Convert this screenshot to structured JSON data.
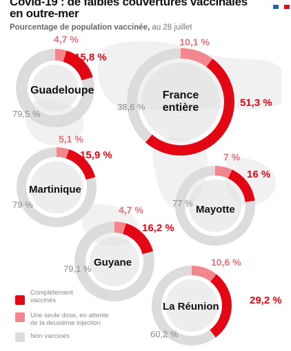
{
  "header": {
    "title_line1": "Covid-19 : de faibles couvertures vaccinales",
    "title_line2": "en outre-mer",
    "subtitle_main": "Pourcentage de population vaccinée,",
    "subtitle_date": "au 28 juillet"
  },
  "colors": {
    "complete": "#e30613",
    "partial": "#f2868f",
    "none": "#dcdcdc",
    "map": "#dedede",
    "text_red": "#e30613",
    "text_pink": "#ec6f7c",
    "text_grey": "#8a8a8a"
  },
  "legend": [
    {
      "key": "complete",
      "label_line1": "Complètement",
      "label_line2": "vaccinés"
    },
    {
      "key": "partial",
      "label_line1": "Une seule dose, en attente",
      "label_line2": "de la deuxième injection"
    },
    {
      "key": "none",
      "label_line1": "Non vaccinés",
      "label_line2": ""
    }
  ],
  "chart_data": {
    "type": "pie",
    "variant": "donut",
    "title": "Covid-19 : de faibles couvertures vaccinales en outre-mer",
    "subtitle": "Pourcentage de population vaccinée, au 28 juillet",
    "series_names": [
      "Complètement vaccinés",
      "Une seule dose, en attente de la deuxième injection",
      "Non vaccinés"
    ],
    "regions": [
      {
        "name": "Guadeloupe",
        "complete": 15.8,
        "partial": 4.7,
        "none": 79.5,
        "complete_label": "15,8 %",
        "partial_label": "4,7 %",
        "none_label": "79,5 %"
      },
      {
        "name_line1": "France",
        "name_line2": "entière",
        "complete": 51.3,
        "partial": 10.1,
        "none": 38.6,
        "complete_label": "51,3 %",
        "partial_label": "10,1 %",
        "none_label": "38,6 %"
      },
      {
        "name": "Martinique",
        "complete": 15.9,
        "partial": 5.1,
        "none": 79,
        "complete_label": "15,9 %",
        "partial_label": "5,1 %",
        "none_label": "79 %"
      },
      {
        "name": "Mayotte",
        "complete": 16,
        "partial": 7,
        "none": 77,
        "complete_label": "16 %",
        "partial_label": "7 %",
        "none_label": "77 %"
      },
      {
        "name": "Guyane",
        "complete": 16.2,
        "partial": 4.7,
        "none": 79.1,
        "complete_label": "16,2 %",
        "partial_label": "4,7 %",
        "none_label": "79,1 %"
      },
      {
        "name": "La Réunion",
        "complete": 29.2,
        "partial": 10.6,
        "none": 60.2,
        "complete_label": "29,2 %",
        "partial_label": "10,6 %",
        "none_label": "60,2 %"
      }
    ]
  }
}
